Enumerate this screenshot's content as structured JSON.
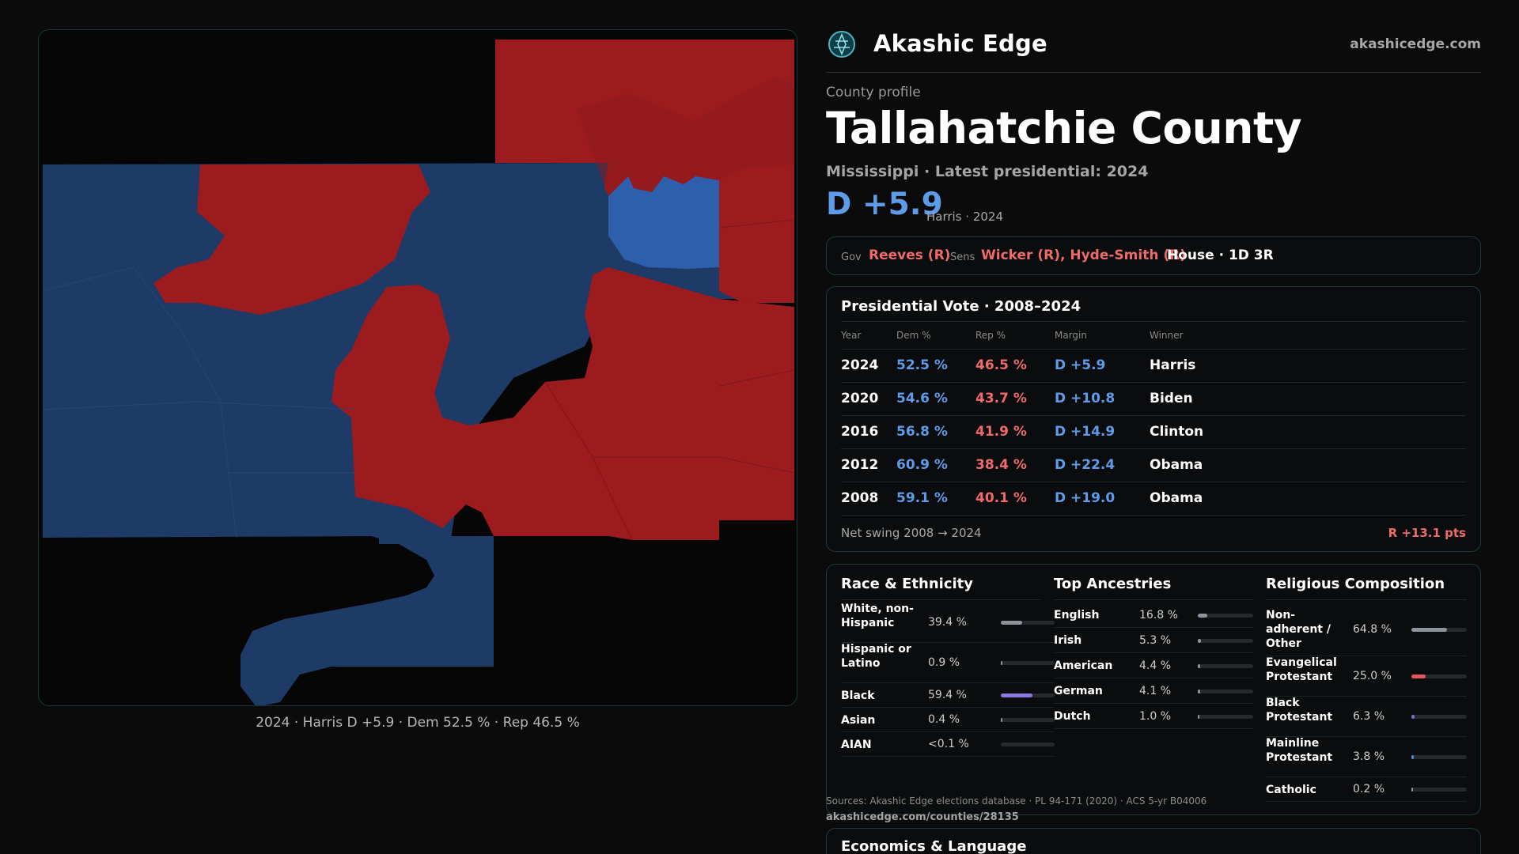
{
  "map": {
    "caption": "2024 · Harris D +5.9 · Dem 52.5 % · Rep 46.5 %",
    "colors": {
      "dem_dark": "#1d3b66",
      "dem_light": "#2d5fac",
      "rep": "#9b1b1f",
      "background": "#060607"
    }
  },
  "brand": {
    "name": "Akashic Edge",
    "url": "akashicedge.com",
    "logo_icon": "compass-icon"
  },
  "profile": {
    "eyebrow": "County profile",
    "county": "Tallahatchie County",
    "subtitle": "Mississippi · Latest presidential: 2024",
    "margin": "D +5.9",
    "margin_note": "Harris · 2024"
  },
  "officials": {
    "gov_label": "Gov",
    "gov": "Reeves (R)",
    "sens_label": "Sens",
    "sens": "Wicker (R), Hyde-Smith (R)",
    "house": "House · 1D 3R"
  },
  "presidential": {
    "title": "Presidential Vote · 2008–2024",
    "columns": [
      "Year",
      "Dem %",
      "Rep %",
      "Margin",
      "Winner"
    ],
    "rows": [
      {
        "year": "2024",
        "dem": "52.5 %",
        "rep": "46.5 %",
        "margin": "D +5.9",
        "winner": "Harris"
      },
      {
        "year": "2020",
        "dem": "54.6 %",
        "rep": "43.7 %",
        "margin": "D +10.8",
        "winner": "Biden"
      },
      {
        "year": "2016",
        "dem": "56.8 %",
        "rep": "41.9 %",
        "margin": "D +14.9",
        "winner": "Clinton"
      },
      {
        "year": "2012",
        "dem": "60.9 %",
        "rep": "38.4 %",
        "margin": "D +22.4",
        "winner": "Obama"
      },
      {
        "year": "2008",
        "dem": "59.1 %",
        "rep": "40.1 %",
        "margin": "D +19.0",
        "winner": "Obama"
      }
    ],
    "swing_label": "Net swing 2008 → 2024",
    "swing_value": "R +13.1 pts"
  },
  "race": {
    "title": "Race & Ethnicity",
    "rows": [
      {
        "label": "White, non-Hispanic",
        "value": "39.4 %",
        "pct": 39.4,
        "color": "#8e949c"
      },
      {
        "label": "Hispanic or Latino",
        "value": "0.9 %",
        "pct": 0.9,
        "color": "#8e949c"
      },
      {
        "label": "Black",
        "value": "59.4 %",
        "pct": 59.4,
        "color": "#8b78e0"
      },
      {
        "label": "Asian",
        "value": "0.4 %",
        "pct": 0.4,
        "color": "#8e949c"
      },
      {
        "label": "AIAN",
        "value": "<0.1 %",
        "pct": 0.05,
        "color": "#8e949c"
      }
    ]
  },
  "ancestry": {
    "title": "Top Ancestries",
    "rows": [
      {
        "label": "English",
        "value": "16.8 %",
        "pct": 16.8,
        "color": "#8e949c"
      },
      {
        "label": "Irish",
        "value": "5.3 %",
        "pct": 5.3,
        "color": "#8e949c"
      },
      {
        "label": "American",
        "value": "4.4 %",
        "pct": 4.4,
        "color": "#8e949c"
      },
      {
        "label": "German",
        "value": "4.1 %",
        "pct": 4.1,
        "color": "#8e949c"
      },
      {
        "label": "Dutch",
        "value": "1.0 %",
        "pct": 1.0,
        "color": "#8e949c"
      }
    ]
  },
  "religion": {
    "title": "Religious Composition",
    "rows": [
      {
        "label": "Non-adherent / Other",
        "value": "64.8 %",
        "pct": 64.8,
        "color": "#8e949c"
      },
      {
        "label": "Evangelical Protestant",
        "value": "25.0 %",
        "pct": 25.0,
        "color": "#e0575c"
      },
      {
        "label": "Black Protestant",
        "value": "6.3 %",
        "pct": 6.3,
        "color": "#7b68d8"
      },
      {
        "label": "Mainline Protestant",
        "value": "3.8 %",
        "pct": 3.8,
        "color": "#4f86d9"
      },
      {
        "label": "Catholic",
        "value": "0.2 %",
        "pct": 0.2,
        "color": "#8e949c"
      }
    ]
  },
  "sources": {
    "text": "Sources: Akashic Edge elections database · PL 94-171 (2020) · ACS 5-yr B04006",
    "url": "akashicedge.com/counties/28135"
  },
  "economics": {
    "title": "Economics & Language"
  }
}
